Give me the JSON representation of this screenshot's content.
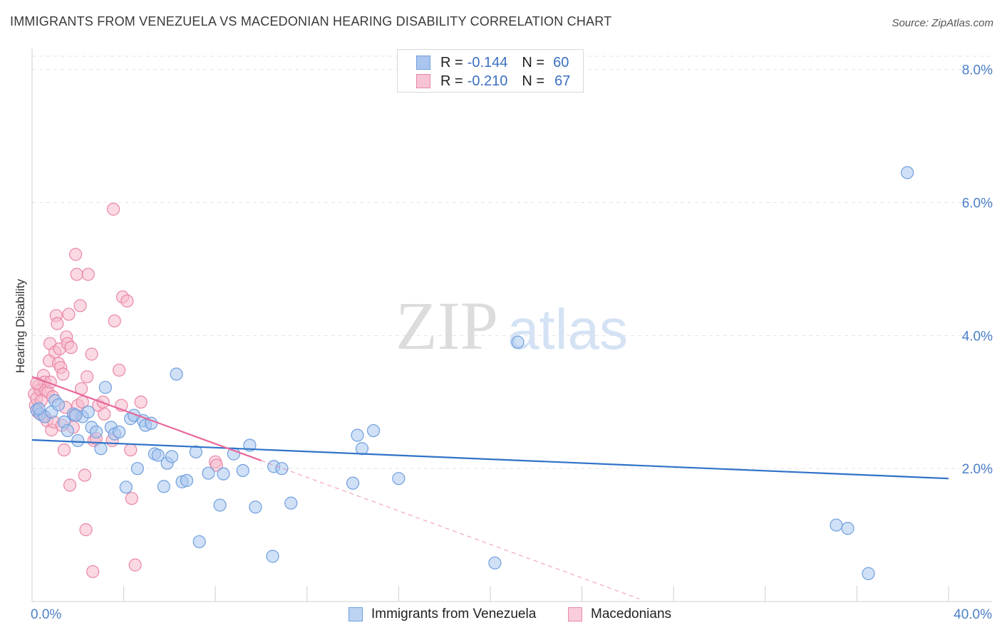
{
  "title": "IMMIGRANTS FROM VENEZUELA VS MACEDONIAN HEARING DISABILITY CORRELATION CHART",
  "source": "Source: ZipAtlas.com",
  "watermark": {
    "zip": "ZIP",
    "atlas": "atlas"
  },
  "legend_top": [
    {
      "r_label": "R =",
      "r_value": "-0.144",
      "n_label": "N =",
      "n_value": "60"
    },
    {
      "r_label": "R =",
      "r_value": "-0.210",
      "n_label": "N =",
      "n_value": "67"
    }
  ],
  "legend_bottom": [
    "Immigrants from Venezuela",
    "Macedonians"
  ],
  "colors": {
    "blue_fill": "#aac6ee",
    "blue_stroke": "#6f9fde",
    "blue_line": "#2f72c8",
    "pink_fill": "#f6b9cc",
    "pink_stroke": "#ea86a6",
    "pink_line": "#e8679a",
    "grid": "#e3e3e3",
    "tick_text": "#4a7fc8"
  },
  "chart_data": {
    "type": "scatter",
    "title": "IMMIGRANTS FROM VENEZUELA VS MACEDONIAN HEARING DISABILITY CORRELATION CHART",
    "xlabel": "",
    "ylabel": "Hearing Disability",
    "xlim": [
      0,
      40
    ],
    "ylim": [
      0,
      8.2
    ],
    "x_tick_labels": [
      "0.0%",
      "40.0%"
    ],
    "y_ticks": [
      2,
      4,
      6,
      8
    ],
    "y_tick_labels": [
      "2.0%",
      "4.0%",
      "6.0%",
      "8.0%"
    ],
    "series": [
      {
        "name": "Immigrants from Venezuela",
        "color": "#aac6ee",
        "r": -0.144,
        "n": 60,
        "trend": {
          "x": [
            0,
            40
          ],
          "y": [
            2.43,
            1.85
          ],
          "style": "solid"
        },
        "points": [
          [
            0.2,
            2.88
          ],
          [
            0.35,
            2.82
          ],
          [
            0.55,
            2.78
          ],
          [
            0.85,
            2.85
          ],
          [
            1.0,
            3.02
          ],
          [
            1.15,
            2.96
          ],
          [
            1.4,
            2.7
          ],
          [
            1.55,
            2.57
          ],
          [
            1.8,
            2.82
          ],
          [
            2.0,
            2.42
          ],
          [
            2.2,
            2.78
          ],
          [
            2.45,
            2.85
          ],
          [
            2.6,
            2.62
          ],
          [
            2.8,
            2.55
          ],
          [
            3.0,
            2.3
          ],
          [
            3.2,
            3.22
          ],
          [
            3.45,
            2.62
          ],
          [
            3.6,
            2.52
          ],
          [
            3.8,
            2.55
          ],
          [
            4.1,
            1.72
          ],
          [
            4.3,
            2.75
          ],
          [
            4.45,
            2.8
          ],
          [
            4.6,
            2.0
          ],
          [
            4.85,
            2.72
          ],
          [
            4.95,
            2.65
          ],
          [
            5.2,
            2.68
          ],
          [
            5.35,
            2.22
          ],
          [
            5.5,
            2.2
          ],
          [
            5.75,
            1.73
          ],
          [
            5.9,
            2.08
          ],
          [
            6.1,
            2.18
          ],
          [
            6.3,
            3.42
          ],
          [
            6.55,
            1.8
          ],
          [
            6.75,
            1.82
          ],
          [
            7.15,
            2.25
          ],
          [
            7.3,
            0.9
          ],
          [
            7.7,
            1.93
          ],
          [
            8.2,
            1.45
          ],
          [
            8.35,
            1.92
          ],
          [
            8.8,
            2.22
          ],
          [
            9.2,
            1.97
          ],
          [
            9.5,
            2.35
          ],
          [
            9.75,
            1.42
          ],
          [
            10.5,
            0.68
          ],
          [
            10.55,
            2.03
          ],
          [
            10.9,
            2.0
          ],
          [
            11.3,
            1.48
          ],
          [
            14.0,
            1.78
          ],
          [
            14.2,
            2.5
          ],
          [
            14.4,
            2.3
          ],
          [
            14.9,
            2.57
          ],
          [
            16.0,
            1.85
          ],
          [
            20.2,
            0.58
          ],
          [
            21.2,
            3.9
          ],
          [
            35.1,
            1.15
          ],
          [
            35.6,
            1.1
          ],
          [
            36.5,
            0.42
          ],
          [
            38.2,
            6.45
          ],
          [
            0.3,
            2.9
          ],
          [
            1.9,
            2.8
          ]
        ]
      },
      {
        "name": "Macedonians",
        "color": "#f6b9cc",
        "r": -0.21,
        "n": 67,
        "trend": {
          "x": [
            0,
            10
          ],
          "y": [
            3.38,
            2.12
          ],
          "dashed_extension": {
            "x": [
              10,
              26.5
            ],
            "y": [
              2.12,
              0.04
            ]
          }
        },
        "points": [
          [
            0.1,
            3.12
          ],
          [
            0.15,
            2.95
          ],
          [
            0.2,
            3.05
          ],
          [
            0.25,
            2.85
          ],
          [
            0.3,
            3.25
          ],
          [
            0.35,
            3.18
          ],
          [
            0.4,
            3.02
          ],
          [
            0.45,
            2.8
          ],
          [
            0.5,
            3.4
          ],
          [
            0.55,
            3.3
          ],
          [
            0.6,
            3.18
          ],
          [
            0.65,
            2.72
          ],
          [
            0.7,
            3.15
          ],
          [
            0.75,
            3.62
          ],
          [
            0.78,
            3.88
          ],
          [
            0.8,
            3.3
          ],
          [
            0.85,
            2.58
          ],
          [
            0.9,
            3.08
          ],
          [
            0.95,
            2.7
          ],
          [
            1.0,
            3.75
          ],
          [
            1.05,
            4.3
          ],
          [
            1.1,
            4.18
          ],
          [
            1.15,
            3.58
          ],
          [
            1.2,
            3.8
          ],
          [
            1.25,
            3.52
          ],
          [
            1.3,
            2.65
          ],
          [
            1.35,
            3.42
          ],
          [
            1.4,
            2.28
          ],
          [
            1.45,
            2.92
          ],
          [
            1.5,
            3.98
          ],
          [
            1.55,
            3.88
          ],
          [
            1.6,
            4.32
          ],
          [
            1.65,
            1.75
          ],
          [
            1.7,
            3.82
          ],
          [
            1.8,
            2.62
          ],
          [
            1.85,
            2.8
          ],
          [
            1.9,
            5.22
          ],
          [
            1.95,
            4.92
          ],
          [
            2.0,
            2.95
          ],
          [
            2.1,
            4.45
          ],
          [
            2.15,
            3.2
          ],
          [
            2.2,
            3.0
          ],
          [
            2.3,
            1.9
          ],
          [
            2.35,
            1.08
          ],
          [
            2.4,
            3.38
          ],
          [
            2.45,
            4.92
          ],
          [
            2.6,
            3.72
          ],
          [
            2.65,
            0.45
          ],
          [
            2.7,
            2.42
          ],
          [
            2.8,
            2.45
          ],
          [
            2.9,
            2.95
          ],
          [
            3.1,
            3.0
          ],
          [
            3.15,
            2.82
          ],
          [
            3.5,
            2.42
          ],
          [
            3.55,
            5.9
          ],
          [
            3.6,
            4.22
          ],
          [
            3.8,
            3.48
          ],
          [
            3.9,
            2.95
          ],
          [
            3.95,
            4.58
          ],
          [
            4.15,
            4.52
          ],
          [
            4.3,
            2.28
          ],
          [
            4.35,
            1.55
          ],
          [
            4.5,
            0.55
          ],
          [
            4.75,
            3.0
          ],
          [
            8.0,
            2.1
          ],
          [
            8.05,
            2.05
          ],
          [
            0.2,
            3.28
          ]
        ]
      }
    ]
  }
}
